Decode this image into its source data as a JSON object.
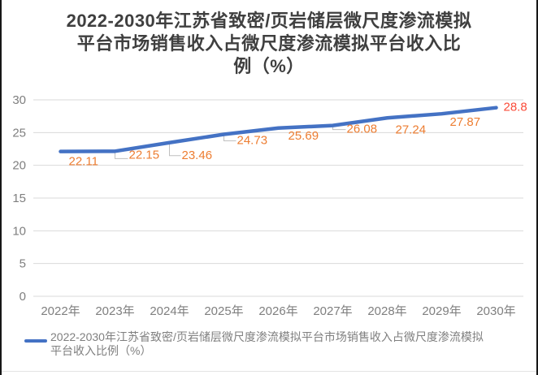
{
  "title": {
    "lines": [
      "2022-2030年江苏省致密/页岩储层微尺度渗流模拟",
      "平台市场销售收入占微尺度渗流模拟平台收入比",
      "例（%）"
    ]
  },
  "legend": {
    "lines": [
      "2022-2030年江苏省致密/页岩储层微尺度渗流模拟平台市场销售收入占微尺度渗流模拟",
      "平台收入比例（%）"
    ]
  },
  "colors": {
    "accent": "#4472C4",
    "data_label": "#ED7D31",
    "final_data_label": "#FA4B38",
    "grid": "#D9D9D9",
    "axis_text": "#7F7F7F",
    "title_text": "#3F3F3F",
    "connector": "#BFBFBF"
  },
  "chart_data": {
    "type": "line",
    "title": "2022-2030年江苏省致密/页岩储层微尺度渗流模拟平台市场销售收入占微尺度渗流模拟平台收入比例（%）",
    "categories": [
      "2022年",
      "2023年",
      "2024年",
      "2025年",
      "2026年",
      "2027年",
      "2028年",
      "2029年",
      "2030年"
    ],
    "series": [
      {
        "name": "2022-2030年江苏省致密/页岩储层微尺度渗流模拟平台市场销售收入占微尺度渗流模拟平台收入比例（%）",
        "values": [
          22.11,
          22.15,
          23.46,
          24.73,
          25.69,
          26.08,
          27.24,
          27.87,
          28.8
        ],
        "color": "#4472C4"
      }
    ],
    "data_labels": [
      "22.11",
      "22.15",
      "23.46",
      "24.73",
      "25.69",
      "26.08",
      "27.24",
      "27.87",
      "28.8"
    ],
    "xlabel": "",
    "ylabel": "",
    "ylim": [
      0,
      30
    ],
    "yticks": [
      0,
      5,
      10,
      15,
      20,
      25,
      30
    ],
    "grid": true,
    "legend_position": "bottom"
  }
}
